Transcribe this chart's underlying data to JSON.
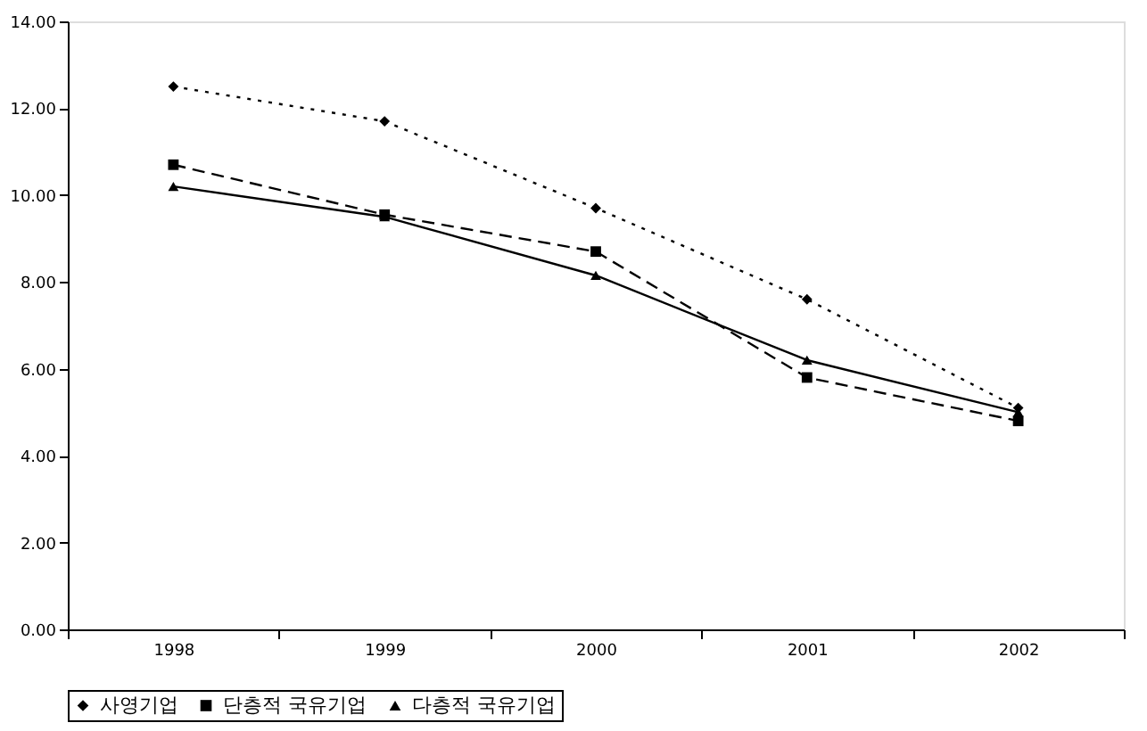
{
  "chart_data": {
    "type": "line",
    "categories": [
      "1998",
      "1999",
      "2000",
      "2001",
      "2002"
    ],
    "series": [
      {
        "name": "사영기업",
        "color": "#000000",
        "marker": "diamond",
        "line_style": "dotted",
        "values": [
          12.5,
          11.7,
          9.7,
          7.6,
          5.1
        ]
      },
      {
        "name": "단층적 국유기업",
        "color": "#000000",
        "marker": "square",
        "line_style": "dashed",
        "values": [
          10.7,
          9.55,
          8.7,
          5.8,
          4.8
        ]
      },
      {
        "name": "다층적 국유기업",
        "color": "#000000",
        "marker": "triangle",
        "line_style": "solid",
        "values": [
          10.2,
          9.5,
          8.15,
          6.2,
          5.0
        ]
      }
    ],
    "ylim": [
      0,
      14
    ],
    "yticks": [
      {
        "value": 0,
        "label": "0.00"
      },
      {
        "value": 2,
        "label": "2.00"
      },
      {
        "value": 4,
        "label": "4.00"
      },
      {
        "value": 6,
        "label": "6.00"
      },
      {
        "value": 8,
        "label": "8.00"
      },
      {
        "value": 10,
        "label": "10.00"
      },
      {
        "value": 12,
        "label": "12.00"
      },
      {
        "value": 14,
        "label": "14.00"
      }
    ],
    "grid": false,
    "legend": "bottom"
  }
}
